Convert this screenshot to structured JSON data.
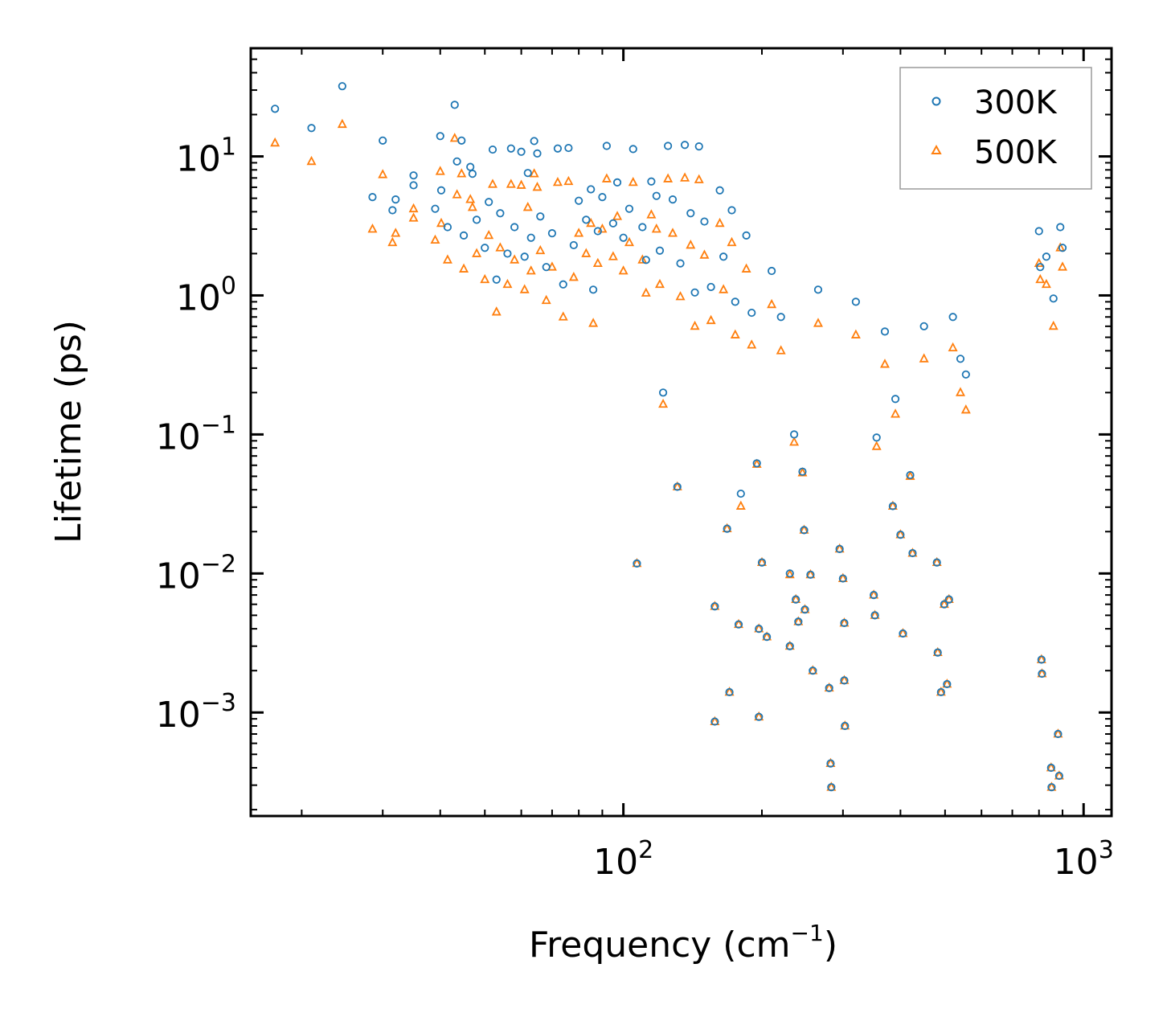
{
  "chart_data": {
    "type": "scatter",
    "title": "",
    "xlabel": "Frequency (cm",
    "xlabel_sup": "−1",
    "xlabel_end": ")",
    "ylabel": "Lifetime (ps)",
    "xscale": "log",
    "yscale": "log",
    "xlim": [
      15.5,
      1150
    ],
    "ylim": [
      0.00018,
      60
    ],
    "legend_position": "top-right",
    "x_ticks": [
      {
        "value": 100,
        "base": "10",
        "exp": "2"
      },
      {
        "value": 1000,
        "base": "10",
        "exp": "3"
      }
    ],
    "y_ticks": [
      {
        "value": 10,
        "base": "10",
        "exp": "1"
      },
      {
        "value": 1,
        "base": "10",
        "exp": "0"
      },
      {
        "value": 0.1,
        "base": "10",
        "exp": "−1"
      },
      {
        "value": 0.01,
        "base": "10",
        "exp": "−2"
      },
      {
        "value": 0.001,
        "base": "10",
        "exp": "−3"
      }
    ],
    "series": [
      {
        "name": "300K",
        "marker": "circle",
        "color": "#1f77b4"
      },
      {
        "name": "500K",
        "marker": "triangle",
        "color": "#ff7f0e"
      }
    ],
    "points": [
      [
        17.5,
        22,
        12.5
      ],
      [
        21,
        16,
        9.2
      ],
      [
        24.5,
        32,
        17
      ],
      [
        28.5,
        5.1,
        3
      ],
      [
        30,
        13,
        7.4
      ],
      [
        31.5,
        4.1,
        2.4
      ],
      [
        32,
        4.9,
        2.8
      ],
      [
        35,
        7.3,
        4.2
      ],
      [
        35,
        6.2,
        3.6
      ],
      [
        39,
        4.2,
        2.5
      ],
      [
        40,
        14,
        7.8
      ],
      [
        40.2,
        5.7,
        3.3
      ],
      [
        41.5,
        3.1,
        1.8
      ],
      [
        43,
        23.5,
        13.5
      ],
      [
        43.5,
        9.2,
        5.3
      ],
      [
        44.5,
        13,
        7.5
      ],
      [
        45,
        2.7,
        1.55
      ],
      [
        46.5,
        8.4,
        4.9
      ],
      [
        47,
        7.5,
        4.3
      ],
      [
        48,
        3.5,
        2
      ],
      [
        50,
        2.2,
        1.3
      ],
      [
        51,
        4.7,
        2.7
      ],
      [
        52,
        11.2,
        6.3
      ],
      [
        53,
        1.3,
        0.76
      ],
      [
        54,
        3.9,
        2.2
      ],
      [
        56,
        2,
        1.2
      ],
      [
        57,
        11.4,
        6.3
      ],
      [
        58,
        3.1,
        1.8
      ],
      [
        60,
        10.8,
        6.2
      ],
      [
        61,
        1.9,
        1.1
      ],
      [
        62,
        7.6,
        4.3
      ],
      [
        63,
        2.6,
        1.5
      ],
      [
        64,
        12.9,
        7.5
      ],
      [
        65,
        10.5,
        6
      ],
      [
        66,
        3.7,
        2.1
      ],
      [
        68,
        1.6,
        0.92
      ],
      [
        70,
        2.8,
        1.6
      ],
      [
        72,
        11.4,
        6.5
      ],
      [
        74,
        1.2,
        0.7
      ],
      [
        76,
        11.5,
        6.6
      ],
      [
        78,
        2.3,
        1.35
      ],
      [
        80,
        4.8,
        2.8
      ],
      [
        83,
        3.5,
        2
      ],
      [
        85,
        5.8,
        3.3
      ],
      [
        86,
        1.1,
        0.63
      ],
      [
        88,
        2.9,
        1.7
      ],
      [
        90,
        5.1,
        3
      ],
      [
        92,
        11.9,
        6.9
      ],
      [
        95,
        3.3,
        1.9
      ],
      [
        97,
        6.5,
        3.7
      ],
      [
        100,
        2.6,
        1.5
      ],
      [
        103,
        4.2,
        2.4
      ],
      [
        105,
        11.3,
        6.5
      ],
      [
        107,
        0.0118,
        0.0118
      ],
      [
        110,
        3.1,
        1.8
      ],
      [
        112,
        1.8,
        1.04
      ],
      [
        115,
        6.6,
        3.8
      ],
      [
        118,
        5.2,
        3
      ],
      [
        120,
        2.1,
        1.2
      ],
      [
        122,
        0.2,
        0.165
      ],
      [
        125,
        11.9,
        6.9
      ],
      [
        128,
        4.9,
        2.8
      ],
      [
        131,
        0.042,
        0.042
      ],
      [
        133,
        1.7,
        0.98
      ],
      [
        136,
        12.1,
        7
      ],
      [
        140,
        3.9,
        2.3
      ],
      [
        143,
        1.05,
        0.6
      ],
      [
        146,
        11.8,
        6.8
      ],
      [
        150,
        3.4,
        1.95
      ],
      [
        155,
        1.15,
        0.66
      ],
      [
        158,
        0.00086,
        0.00086
      ],
      [
        158,
        0.0058,
        0.0058
      ],
      [
        162,
        5.7,
        3.3
      ],
      [
        165,
        1.9,
        1.1
      ],
      [
        168,
        0.021,
        0.021
      ],
      [
        170,
        0.0014,
        0.0014
      ],
      [
        172,
        4.1,
        2.4
      ],
      [
        175,
        0.9,
        0.52
      ],
      [
        178,
        0.0043,
        0.0043
      ],
      [
        180,
        0.0375,
        0.0305
      ],
      [
        185,
        2.7,
        1.55
      ],
      [
        190,
        0.75,
        0.44
      ],
      [
        195,
        0.062,
        0.061
      ],
      [
        197,
        0.004,
        0.004
      ],
      [
        197,
        0.00093,
        0.00093
      ],
      [
        200,
        0.012,
        0.012
      ],
      [
        205,
        0.0035,
        0.0035
      ],
      [
        210,
        1.5,
        0.86
      ],
      [
        220,
        0.7,
        0.4
      ],
      [
        230,
        0.01,
        0.0098
      ],
      [
        230,
        0.003,
        0.003
      ],
      [
        235,
        0.1,
        0.088
      ],
      [
        237,
        0.0065,
        0.0065
      ],
      [
        240,
        0.0045,
        0.0045
      ],
      [
        245,
        0.054,
        0.053
      ],
      [
        247,
        0.0205,
        0.0205
      ],
      [
        248,
        0.0055,
        0.0055
      ],
      [
        255,
        0.0098,
        0.0098
      ],
      [
        258,
        0.002,
        0.002
      ],
      [
        265,
        1.1,
        0.63
      ],
      [
        280,
        0.0015,
        0.0015
      ],
      [
        282,
        0.00043,
        0.00043
      ],
      [
        283,
        0.00029,
        0.00029
      ],
      [
        295,
        0.015,
        0.015
      ],
      [
        300,
        0.0092,
        0.0092
      ],
      [
        302,
        0.0044,
        0.0044
      ],
      [
        302,
        0.0017,
        0.0017
      ],
      [
        303,
        0.0008,
        0.0008
      ],
      [
        320,
        0.9,
        0.52
      ],
      [
        350,
        0.007,
        0.007
      ],
      [
        352,
        0.005,
        0.005
      ],
      [
        355,
        0.095,
        0.082
      ],
      [
        370,
        0.55,
        0.32
      ],
      [
        385,
        0.0305,
        0.0305
      ],
      [
        390,
        0.18,
        0.14
      ],
      [
        400,
        0.019,
        0.019
      ],
      [
        405,
        0.0037,
        0.0037
      ],
      [
        420,
        0.051,
        0.05
      ],
      [
        425,
        0.014,
        0.014
      ],
      [
        450,
        0.6,
        0.35
      ],
      [
        480,
        0.012,
        0.012
      ],
      [
        482,
        0.0027,
        0.0027
      ],
      [
        490,
        0.0014,
        0.0014
      ],
      [
        498,
        0.006,
        0.006
      ],
      [
        505,
        0.0016,
        0.0016
      ],
      [
        510,
        0.0065,
        0.0065
      ],
      [
        520,
        0.7,
        0.42
      ],
      [
        540,
        0.35,
        0.2
      ],
      [
        555,
        0.27,
        0.15
      ],
      [
        800,
        2.9,
        1.7
      ],
      [
        805,
        1.6,
        1.3
      ],
      [
        810,
        0.0024,
        0.0024
      ],
      [
        812,
        0.0019,
        0.0019
      ],
      [
        830,
        1.9,
        1.2
      ],
      [
        850,
        0.0004,
        0.0004
      ],
      [
        852,
        0.00029,
        0.00029
      ],
      [
        860,
        0.95,
        0.6
      ],
      [
        880,
        0.0007,
        0.0007
      ],
      [
        885,
        0.00035,
        0.00035
      ],
      [
        890,
        3.1,
        2.2
      ],
      [
        900,
        2.2,
        1.6
      ]
    ]
  }
}
